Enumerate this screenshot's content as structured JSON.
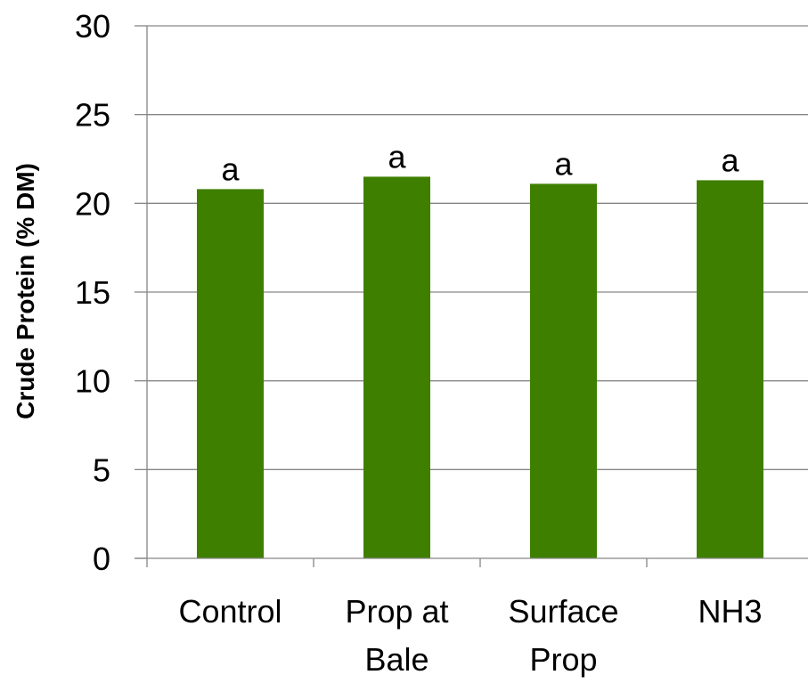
{
  "chart_data": {
    "type": "bar",
    "categories": [
      [
        "Control"
      ],
      [
        "Prop at",
        "Bale"
      ],
      [
        "Surface",
        "Prop"
      ],
      [
        "NH3"
      ]
    ],
    "values": [
      20.8,
      21.5,
      21.1,
      21.3
    ],
    "data_labels": [
      "a",
      "a",
      "a",
      "a"
    ],
    "title": "",
    "xlabel": "",
    "ylabel": "Crude Protein (% DM)",
    "ylim": [
      0,
      30
    ],
    "yticks": [
      0,
      5,
      10,
      15,
      20,
      25,
      30
    ],
    "grid": "horizontal",
    "legend": "none",
    "bar_color": "#3f7f00",
    "grid_color": "#868686",
    "axis_color": "#868686"
  }
}
